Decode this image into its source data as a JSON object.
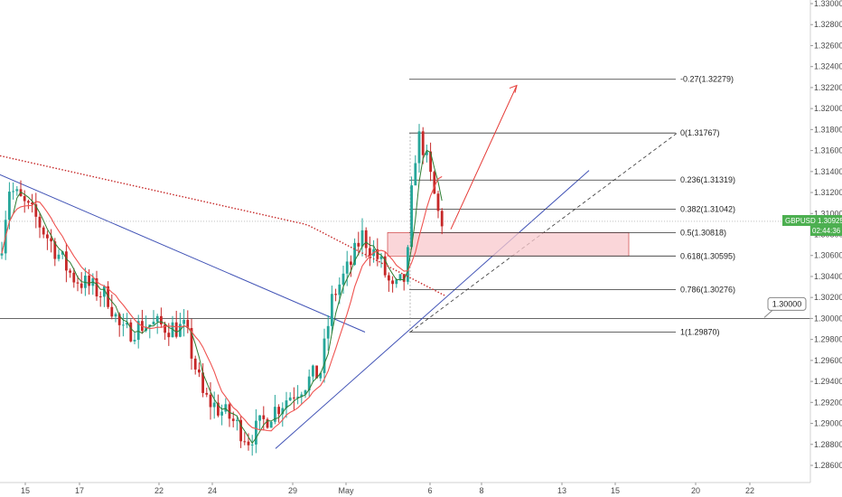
{
  "chart_data": {
    "type": "candlestick",
    "symbol": "GBPUSD",
    "current_price": "1.30925",
    "countdown": "02:44:36",
    "colors": {
      "up": "#26a69a",
      "down": "#c62828",
      "ma_fast": "#2e7d32",
      "ma_slow": "#ef5350",
      "ma_long": "#c62828",
      "trendline": "#3f51b5",
      "zone": "#f8c8cc",
      "price_tag": "#4caf50"
    },
    "ylim": [
      1.285,
      1.3305
    ],
    "y_ticks": [
      "1.33000",
      "1.32800",
      "1.32600",
      "1.32400",
      "1.32200",
      "1.32000",
      "1.31800",
      "1.31600",
      "1.31400",
      "1.31200",
      "1.31000",
      "1.30800",
      "1.30600",
      "1.30400",
      "1.30200",
      "1.30000",
      "1.29800",
      "1.29600",
      "1.29400",
      "1.29200",
      "1.29000",
      "1.28800",
      "1.28600"
    ],
    "x_ticks": [
      "15",
      "17",
      "22",
      "24",
      "29",
      "May",
      "6",
      "8",
      "13",
      "15",
      "20",
      "22"
    ],
    "fib_levels": [
      {
        "label": "-0.27(1.32279)",
        "value": 1.32279
      },
      {
        "label": "0(1.31767)",
        "value": 1.31767
      },
      {
        "label": "0.236(1.31319)",
        "value": 1.31319
      },
      {
        "label": "0.382(1.31042)",
        "value": 1.31042
      },
      {
        "label": "0.5(1.30818)",
        "value": 1.30818
      },
      {
        "label": "0.618(1.30595)",
        "value": 1.30595
      },
      {
        "label": "0.786(1.30276)",
        "value": 1.30276
      },
      {
        "label": "1(1.29870)",
        "value": 1.2987
      }
    ],
    "support_level": "1.30000",
    "zone": [
      1.30595,
      1.30818
    ]
  }
}
